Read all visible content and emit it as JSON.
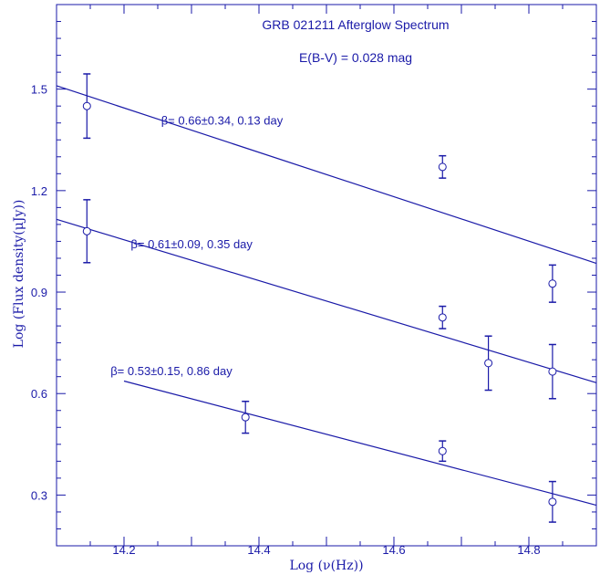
{
  "chart_data": {
    "type": "scatter",
    "title": "GRB 021211 Afterglow Spectrum",
    "subtitle": "E(B-V) = 0.028 mag",
    "xlabel": "Log (ν(Hz))",
    "ylabel": "Log (Flux density(μJy))",
    "xlim": [
      14.1,
      14.9
    ],
    "ylim": [
      0.15,
      1.75
    ],
    "x_ticks": [
      14.2,
      14.4,
      14.6,
      14.8
    ],
    "x_tick_labels": [
      "14.2",
      "14.4",
      "14.6",
      "14.8"
    ],
    "y_ticks": [
      0.3,
      0.6,
      0.9,
      1.2,
      1.5
    ],
    "y_tick_labels": [
      "0.3",
      "0.6",
      "0.9",
      "1.2",
      "1.5"
    ],
    "grid": false,
    "color": "#1a1aa8",
    "series": [
      {
        "points": [
          {
            "x": 14.145,
            "y": 1.45,
            "err": 0.095
          },
          {
            "x": 14.672,
            "y": 1.27,
            "err": 0.033
          },
          {
            "x": 14.835,
            "y": 0.925,
            "err": 0.055
          }
        ],
        "fit": {
          "x": [
            14.1,
            14.9
          ],
          "y": [
            1.51,
            0.985
          ]
        },
        "label": "β= 0.66±0.34, 0.13 day",
        "label_at": {
          "x": 14.255,
          "y": 1.395
        }
      },
      {
        "points": [
          {
            "x": 14.145,
            "y": 1.08,
            "err": 0.093
          },
          {
            "x": 14.672,
            "y": 0.825,
            "err": 0.033
          },
          {
            "x": 14.74,
            "y": 0.69,
            "err": 0.08
          },
          {
            "x": 14.835,
            "y": 0.665,
            "err": 0.08
          }
        ],
        "fit": {
          "x": [
            14.1,
            14.9
          ],
          "y": [
            1.115,
            0.632
          ]
        },
        "label": "β= 0.61±0.09, 0.35 day",
        "label_at": {
          "x": 14.21,
          "y": 1.03
        }
      },
      {
        "points": [
          {
            "x": 14.38,
            "y": 0.53,
            "err": 0.047
          },
          {
            "x": 14.672,
            "y": 0.43,
            "err": 0.03
          },
          {
            "x": 14.835,
            "y": 0.28,
            "err": 0.06
          }
        ],
        "fit": {
          "x": [
            14.2,
            14.9
          ],
          "y": [
            0.637,
            0.27
          ]
        },
        "label": "β= 0.53±0.15, 0.86 day",
        "label_at": {
          "x": 14.18,
          "y": 0.655
        }
      }
    ]
  }
}
